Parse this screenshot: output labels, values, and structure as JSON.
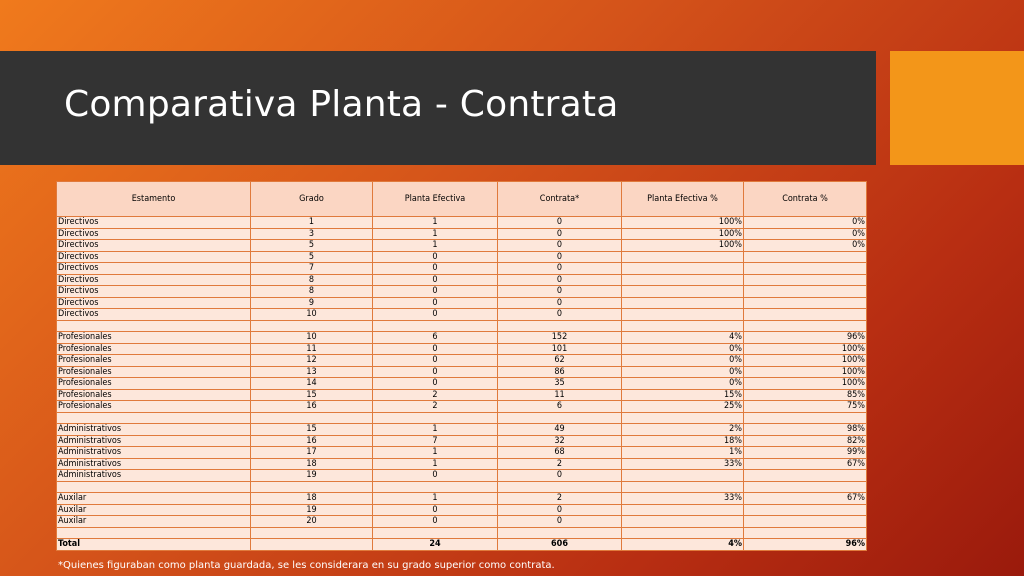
{
  "title": "Comparativa Planta - Contrata",
  "table": {
    "headers": [
      "Estamento",
      "Grado",
      "Planta Efectiva",
      "Contrata*",
      "Planta Efectiva %",
      "Contrata %"
    ],
    "rows": [
      [
        "Directivos",
        "1",
        "1",
        "0",
        "100%",
        "0%"
      ],
      [
        "Directivos",
        "3",
        "1",
        "0",
        "100%",
        "0%"
      ],
      [
        "Directivos",
        "5",
        "1",
        "0",
        "100%",
        "0%"
      ],
      [
        "Directivos",
        "5",
        "0",
        "0",
        "",
        ""
      ],
      [
        "Directivos",
        "7",
        "0",
        "0",
        "",
        ""
      ],
      [
        "Directivos",
        "8",
        "0",
        "0",
        "",
        ""
      ],
      [
        "Directivos",
        "8",
        "0",
        "0",
        "",
        ""
      ],
      [
        "Directivos",
        "9",
        "0",
        "0",
        "",
        ""
      ],
      [
        "Directivos",
        "10",
        "0",
        "0",
        "",
        ""
      ],
      [
        "",
        "",
        "",
        "",
        "",
        ""
      ],
      [
        "Profesionales",
        "10",
        "6",
        "152",
        "4%",
        "96%"
      ],
      [
        "Profesionales",
        "11",
        "0",
        "101",
        "0%",
        "100%"
      ],
      [
        "Profesionales",
        "12",
        "0",
        "62",
        "0%",
        "100%"
      ],
      [
        "Profesionales",
        "13",
        "0",
        "86",
        "0%",
        "100%"
      ],
      [
        "Profesionales",
        "14",
        "0",
        "35",
        "0%",
        "100%"
      ],
      [
        "Profesionales",
        "15",
        "2",
        "11",
        "15%",
        "85%"
      ],
      [
        "Profesionales",
        "16",
        "2",
        "6",
        "25%",
        "75%"
      ],
      [
        "",
        "",
        "",
        "",
        "",
        ""
      ],
      [
        "Administrativos",
        "15",
        "1",
        "49",
        "2%",
        "98%"
      ],
      [
        "Administrativos",
        "16",
        "7",
        "32",
        "18%",
        "82%"
      ],
      [
        "Administrativos",
        "17",
        "1",
        "68",
        "1%",
        "99%"
      ],
      [
        "Administrativos",
        "18",
        "1",
        "2",
        "33%",
        "67%"
      ],
      [
        "Administrativos",
        "19",
        "0",
        "0",
        "",
        ""
      ],
      [
        "",
        "",
        "",
        "",
        "",
        ""
      ],
      [
        "Auxilar",
        "18",
        "1",
        "2",
        "33%",
        "67%"
      ],
      [
        "Auxilar",
        "19",
        "0",
        "0",
        "",
        ""
      ],
      [
        "Auxilar",
        "20",
        "0",
        "0",
        "",
        ""
      ],
      [
        "",
        "",
        "",
        "",
        "",
        ""
      ]
    ],
    "total": [
      "Total",
      "",
      "24",
      "606",
      "4%",
      "96%"
    ]
  },
  "footnote": "*Quienes figuraban como planta guardada, se les considerara en su grado superior como contrata.",
  "colors": {
    "title_band": "#333333",
    "accent": "#f39619",
    "table_bg": "#fde7db",
    "table_border": "#e07a3c"
  }
}
